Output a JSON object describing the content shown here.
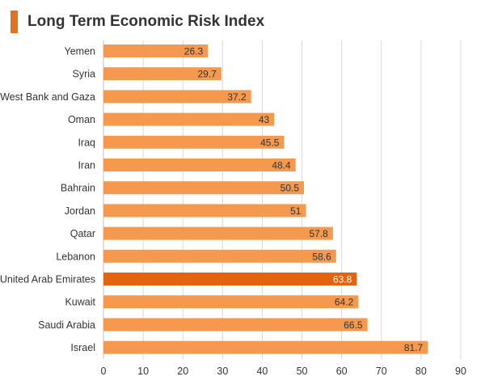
{
  "chart_data": {
    "type": "bar",
    "orientation": "horizontal",
    "title": "Long Term Economic Risk Index",
    "categories": [
      "Yemen",
      "Syria",
      "West Bank and Gaza",
      "Oman",
      "Iraq",
      "Iran",
      "Bahrain",
      "Jordan",
      "Qatar",
      "Lebanon",
      "United Arab Emirates",
      "Kuwait",
      "Saudi Arabia",
      "Israel"
    ],
    "values": [
      26.3,
      29.7,
      37.2,
      43,
      45.5,
      48.4,
      50.5,
      51,
      57.8,
      58.6,
      63.8,
      64.2,
      66.5,
      81.7
    ],
    "value_labels": [
      "26.3",
      "29.7",
      "37.2",
      "43",
      "45.5",
      "48.4",
      "50.5",
      "51",
      "57.8",
      "58.6",
      "63.8",
      "64.2",
      "66.5",
      "81.7"
    ],
    "highlight": "United Arab Emirates",
    "xlim": [
      0,
      90
    ],
    "xticks": [
      0,
      10,
      20,
      30,
      40,
      50,
      60,
      70,
      80,
      90
    ],
    "grid": "vertical",
    "legend": "none",
    "colors": {
      "bar": "#f5994e",
      "bar_highlight": "#e0650e",
      "title_accent": "#e8711e",
      "grid": "#d9d9d9"
    }
  }
}
